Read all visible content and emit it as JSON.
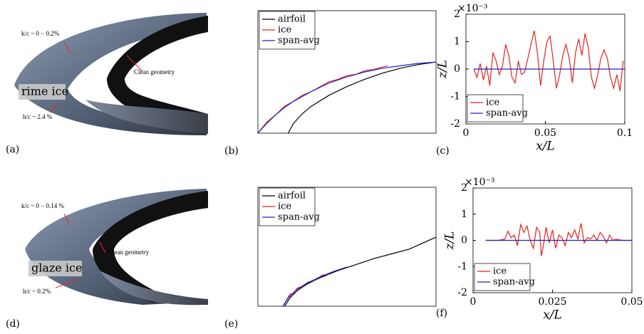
{
  "panel_labels": [
    "(a)",
    "(b)",
    "(c)",
    "(d)",
    "(e)",
    "(f)"
  ],
  "renders": [
    {
      "ice_label": "rime ice",
      "roughness": "k/c ~ 0 − 0.2%",
      "height": "h/c ~ 2.4 %",
      "clean": "Clean geometry"
    },
    {
      "ice_label": "glaze ice",
      "roughness": "k/c ~ 0 − 0.14 %",
      "height": "h/c ~ 0.2%",
      "clean": "Clean geometry"
    }
  ],
  "chart_data": [
    {
      "type": "line",
      "xlim": [
        0,
        1
      ],
      "ylim": [
        0,
        1
      ],
      "legend": "upper left",
      "series": [
        {
          "name": "airfoil",
          "color": "#000000",
          "x": [
            0.17,
            0.2,
            0.25,
            0.3,
            0.4,
            0.5,
            0.6,
            0.7,
            0.8,
            0.9,
            1.0
          ],
          "values": [
            0,
            0.08,
            0.16,
            0.22,
            0.31,
            0.38,
            0.44,
            0.49,
            0.53,
            0.56,
            0.58
          ]
        },
        {
          "name": "ice",
          "color": "#e8221c",
          "x": [
            0,
            0.05,
            0.1,
            0.15,
            0.2,
            0.25,
            0.3,
            0.35,
            0.4,
            0.45,
            0.5,
            0.55,
            0.6,
            0.65,
            0.7,
            0.73
          ],
          "values": [
            0,
            0.09,
            0.15,
            0.22,
            0.26,
            0.31,
            0.34,
            0.38,
            0.42,
            0.44,
            0.47,
            0.48,
            0.51,
            0.52,
            0.54,
            0.55
          ]
        },
        {
          "name": "span-avg",
          "color": "#2020c8",
          "x": [
            0,
            0.05,
            0.1,
            0.15,
            0.2,
            0.3,
            0.4,
            0.5,
            0.6,
            0.7,
            0.8,
            0.9,
            1.0
          ],
          "values": [
            0,
            0.08,
            0.15,
            0.21,
            0.26,
            0.34,
            0.41,
            0.46,
            0.5,
            0.53,
            0.55,
            0.57,
            0.58
          ]
        }
      ]
    },
    {
      "type": "line",
      "xlabel": "x/L",
      "ylabel": "z/L",
      "y_scale": "×10⁻³",
      "xlim": [
        0,
        0.1
      ],
      "ylim": [
        -2,
        2
      ],
      "xticks": [
        0,
        0.05,
        0.1
      ],
      "yticks": [
        -2,
        -1,
        0,
        1,
        2
      ],
      "legend": "lower left",
      "series": [
        {
          "name": "ice",
          "color": "#e8221c",
          "x": [
            0.005,
            0.007,
            0.009,
            0.011,
            0.013,
            0.015,
            0.017,
            0.019,
            0.021,
            0.023,
            0.025,
            0.027,
            0.029,
            0.031,
            0.033,
            0.035,
            0.037,
            0.039,
            0.041,
            0.043,
            0.045,
            0.047,
            0.049,
            0.051,
            0.053,
            0.055,
            0.057,
            0.059,
            0.061,
            0.063,
            0.065,
            0.067,
            0.069,
            0.071,
            0.073,
            0.075,
            0.077,
            0.079,
            0.081,
            0.083,
            0.085,
            0.087,
            0.089,
            0.091,
            0.093,
            0.095,
            0.097,
            0.099
          ],
          "values": [
            0,
            -0.3,
            0.2,
            -0.4,
            0.1,
            -0.6,
            0.6,
            0.3,
            -0.2,
            0.1,
            0.9,
            0.5,
            -0.3,
            -0.5,
            0.3,
            -0.2,
            -0.1,
            0.4,
            0.9,
            1.4,
            0.6,
            -0.6,
            0.3,
            1.0,
            1.2,
            0.3,
            -0.7,
            -0.2,
            0.5,
            0.9,
            0.4,
            -0.5,
            0.6,
            1.1,
            0.5,
            1.3,
            0.8,
            -0.3,
            -0.7,
            -0.2,
            0.4,
            0.7,
            0.4,
            -0.3,
            -0.7,
            -0.2,
            -0.8,
            0.3
          ]
        },
        {
          "name": "span-avg",
          "color": "#2020c8",
          "x": [
            0.005,
            0.1
          ],
          "values": [
            0,
            0
          ]
        }
      ]
    },
    {
      "type": "line",
      "xlim": [
        0,
        1
      ],
      "ylim": [
        0,
        1
      ],
      "legend": "upper left",
      "series": [
        {
          "name": "airfoil",
          "color": "#000000",
          "x": [
            0.15,
            0.18,
            0.22,
            0.28,
            0.35,
            0.45,
            0.55,
            0.65,
            0.75,
            0.85,
            1.0
          ],
          "values": [
            0,
            0.07,
            0.13,
            0.19,
            0.24,
            0.3,
            0.35,
            0.4,
            0.44,
            0.48,
            0.58
          ]
        },
        {
          "name": "ice",
          "color": "#e8221c",
          "x": [
            0.14,
            0.16,
            0.18,
            0.2,
            0.22,
            0.25,
            0.28,
            0.32,
            0.36,
            0.4
          ],
          "values": [
            0,
            0.05,
            0.1,
            0.11,
            0.15,
            0.17,
            0.2,
            0.22,
            0.26,
            0.27
          ]
        },
        {
          "name": "span-avg",
          "color": "#2020c8",
          "x": [
            0.14,
            0.17,
            0.21,
            0.27,
            0.34,
            0.42,
            0.5
          ],
          "values": [
            0,
            0.07,
            0.13,
            0.19,
            0.24,
            0.29,
            0.33
          ]
        }
      ]
    },
    {
      "type": "line",
      "xlabel": "x/L",
      "ylabel": "z/L",
      "y_scale": "×10⁻³",
      "xlim": [
        0,
        0.05
      ],
      "ylim": [
        -2,
        2
      ],
      "xticks": [
        0,
        0.025,
        0.05
      ],
      "yticks": [
        -2,
        -1,
        0,
        1,
        2
      ],
      "legend": "lower left",
      "series": [
        {
          "name": "ice",
          "color": "#e8221c",
          "x": [
            0.004,
            0.008,
            0.01,
            0.011,
            0.012,
            0.013,
            0.014,
            0.015,
            0.016,
            0.017,
            0.018,
            0.019,
            0.02,
            0.021,
            0.0215,
            0.022,
            0.023,
            0.024,
            0.025,
            0.026,
            0.027,
            0.028,
            0.029,
            0.03,
            0.031,
            0.032,
            0.033,
            0.034,
            0.035,
            0.036,
            0.037,
            0.038,
            0.039,
            0.04,
            0.041,
            0.042,
            0.043,
            0.044,
            0.045,
            0.047,
            0.049,
            0.05
          ],
          "values": [
            0,
            0,
            0.05,
            0.35,
            0.1,
            0.2,
            -0.2,
            0.6,
            0.3,
            0.55,
            0,
            -0.3,
            0.5,
            0.3,
            -0.6,
            -0.3,
            0.5,
            -0.1,
            0.4,
            -0.3,
            0.2,
            0.1,
            -0.2,
            0.3,
            0.1,
            0.4,
            0.05,
            0.65,
            -0.1,
            0.1,
            0.05,
            0.2,
            0,
            0.3,
            0.15,
            -0.1,
            0.2,
            0,
            0.05,
            0,
            0,
            0
          ]
        },
        {
          "name": "span-avg",
          "color": "#2020c8",
          "x": [
            0.004,
            0.05
          ],
          "values": [
            0,
            0
          ]
        }
      ]
    }
  ]
}
